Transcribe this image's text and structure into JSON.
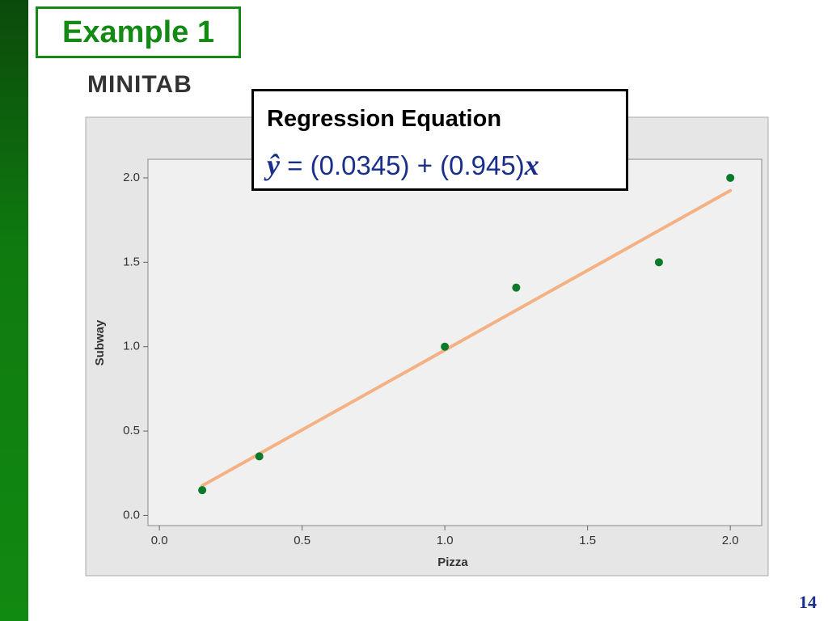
{
  "title": "Example 1",
  "software": "MINITAB",
  "page": "14",
  "chart_data": {
    "type": "scatter",
    "x_label": "Pizza",
    "y_label": "Subway",
    "x": [
      0.15,
      0.35,
      1.0,
      1.25,
      1.75,
      2.0
    ],
    "values": [
      0.15,
      0.35,
      1.0,
      1.35,
      1.5,
      2.0
    ],
    "color": "#0b7a2a",
    "xlim": [
      -0.04,
      2.11
    ],
    "ylim": [
      -0.06,
      2.11
    ],
    "xticks": [
      {
        "value": 0,
        "label": "0.0"
      },
      0.5,
      {
        "value": 1,
        "label": "1.0"
      },
      1.5,
      {
        "value": 2,
        "label": "2.0"
      }
    ],
    "yticks": [
      {
        "value": 0,
        "label": "0.0"
      },
      0.5,
      {
        "value": 1,
        "label": "1.0"
      },
      1.5,
      {
        "value": 2,
        "label": "2.0"
      }
    ],
    "fit": {
      "label": "Regression Equation",
      "lhs": "ŷ",
      "parts": [
        "= (",
        ") + (",
        ")"
      ],
      "intercept": 0.0345,
      "slope": 0.945,
      "variable": "x",
      "color": "#f4b183"
    }
  }
}
